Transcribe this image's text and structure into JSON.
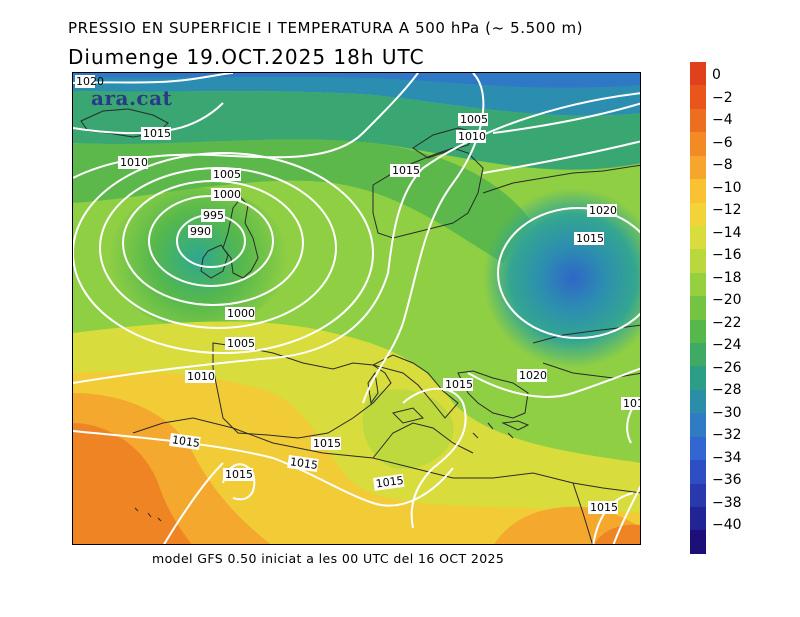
{
  "header": {
    "title_line1": "PRESSIO EN SUPERFICIE I TEMPERATURA A 500 hPa (~ 5.500 m)",
    "title_line2": "Diumenge  19.OCT.2025 18h UTC"
  },
  "map": {
    "watermark": "ara.cat",
    "isobar_labels": [
      {
        "id": "l1",
        "text": "1020"
      },
      {
        "id": "l2",
        "text": "1015"
      },
      {
        "id": "l3",
        "text": "1010"
      },
      {
        "id": "l4",
        "text": "1005"
      },
      {
        "id": "l5",
        "text": "1000"
      },
      {
        "id": "l6",
        "text": "995"
      },
      {
        "id": "l7",
        "text": "990"
      },
      {
        "id": "l8",
        "text": "1000"
      },
      {
        "id": "l9",
        "text": "1005"
      },
      {
        "id": "l10",
        "text": "1010"
      },
      {
        "id": "l11",
        "text": "1015"
      },
      {
        "id": "l12",
        "text": "1015"
      },
      {
        "id": "l13",
        "text": "1015"
      },
      {
        "id": "l14",
        "text": "1015"
      },
      {
        "id": "l15",
        "text": "1015"
      },
      {
        "id": "l16",
        "text": "1005"
      },
      {
        "id": "l17",
        "text": "1010"
      },
      {
        "id": "l18",
        "text": "1015"
      },
      {
        "id": "l19",
        "text": "1020"
      },
      {
        "id": "l20",
        "text": "1015"
      },
      {
        "id": "l21",
        "text": "1020"
      },
      {
        "id": "l22",
        "text": "1015"
      },
      {
        "id": "l23",
        "text": "101"
      },
      {
        "id": "l24",
        "text": "1015"
      }
    ]
  },
  "footer": {
    "text": "model GFS 0.50 iniciat a les 00 UTC del 16 OCT 2025"
  },
  "colorbar": {
    "labels": [
      "0",
      "−2",
      "−4",
      "−6",
      "−8",
      "−10",
      "−12",
      "−14",
      "−16",
      "−18",
      "−20",
      "−22",
      "−24",
      "−26",
      "−28",
      "−30",
      "−32",
      "−34",
      "−36",
      "−38",
      "−40"
    ],
    "colors": [
      "#e0401c",
      "#e8561c",
      "#ee6e20",
      "#f28a26",
      "#f6a62c",
      "#f8c232",
      "#f2d438",
      "#d8dc3c",
      "#b8d83e",
      "#96d040",
      "#74c444",
      "#56b84c",
      "#3eaa64",
      "#2c9e88",
      "#2b8ea8",
      "#2f7cc4",
      "#3266d0",
      "#2e4ec4",
      "#2a38ae",
      "#222496",
      "#1c1078"
    ]
  }
}
